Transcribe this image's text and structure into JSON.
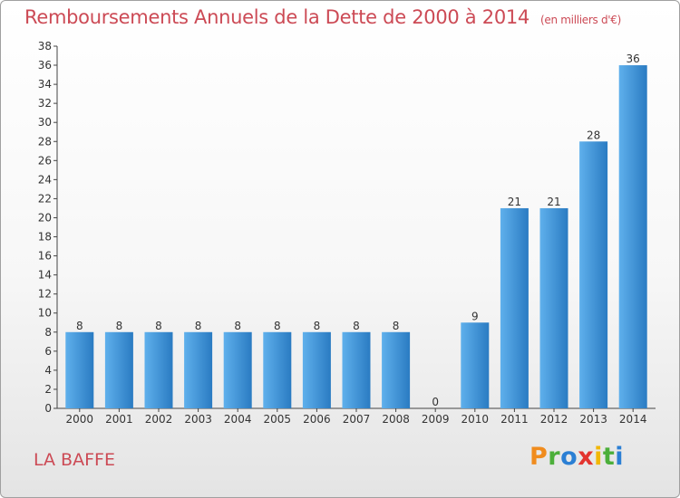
{
  "header": {
    "title": "Remboursements Annuels de la Dette de 2000 à 2014",
    "subtitle": "(en milliers d'€)"
  },
  "commune": "LA BAFFE",
  "logo": {
    "letters": [
      "P",
      "r",
      "o",
      "x",
      "i",
      "t",
      "i"
    ],
    "colors": [
      "#f08c1e",
      "#4caf3a",
      "#2b7fd4",
      "#e3342f",
      "#f2b705",
      "#4caf3a",
      "#2b7fd4"
    ]
  },
  "chart_data": {
    "type": "bar",
    "categories": [
      "2000",
      "2001",
      "2002",
      "2003",
      "2004",
      "2005",
      "2006",
      "2007",
      "2008",
      "2009",
      "2010",
      "2011",
      "2012",
      "2013",
      "2014"
    ],
    "values": [
      8,
      8,
      8,
      8,
      8,
      8,
      8,
      8,
      8,
      0,
      9,
      21,
      21,
      28,
      36
    ],
    "title": "Remboursements Annuels de la Dette de 2000 à 2014",
    "ylabel": "",
    "xlabel": "",
    "ylim": [
      0,
      38
    ],
    "yticks": [
      0,
      2,
      4,
      6,
      8,
      10,
      12,
      14,
      16,
      18,
      20,
      22,
      24,
      26,
      28,
      30,
      32,
      34,
      36,
      38
    ],
    "grid": false,
    "bar_color": "#3a8fd6"
  }
}
